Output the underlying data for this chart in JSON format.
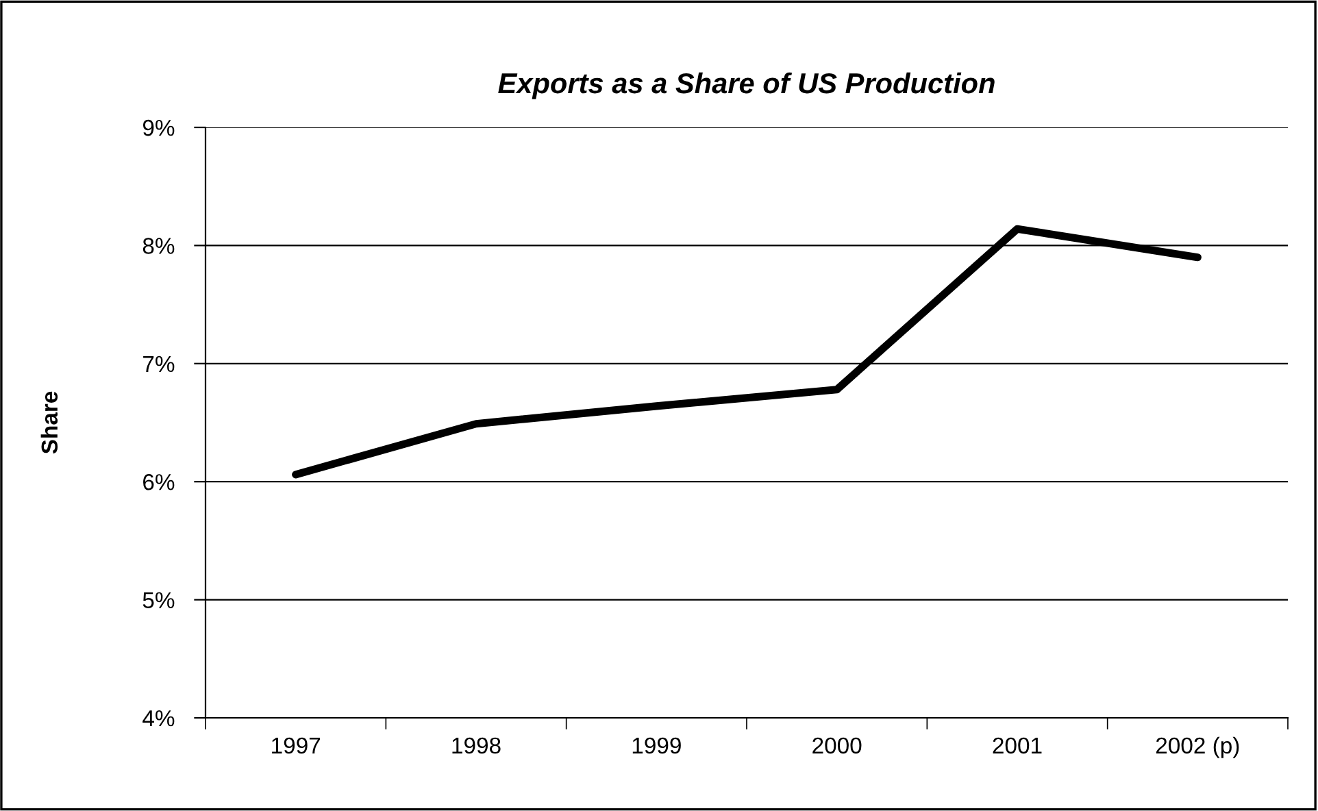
{
  "chart_data": {
    "type": "line",
    "title": "Exports as a Share of US Production",
    "ylabel": "Share",
    "categories": [
      "1997",
      "1998",
      "1999",
      "2000",
      "2001",
      "2002 (p)"
    ],
    "series": [
      {
        "color": "#000000",
        "values": [
          6.06,
          6.49,
          6.64,
          6.78,
          8.14,
          7.9
        ]
      }
    ],
    "ylim": [
      4,
      9
    ],
    "yticks": [
      {
        "value": 4,
        "label": "4%"
      },
      {
        "value": 5,
        "label": "5%"
      },
      {
        "value": 6,
        "label": "6%"
      },
      {
        "value": 7,
        "label": "7%"
      },
      {
        "value": 8,
        "label": "8%"
      },
      {
        "value": 9,
        "label": "9%"
      }
    ],
    "grid": "y",
    "marker": "none",
    "line_style": "solid"
  }
}
